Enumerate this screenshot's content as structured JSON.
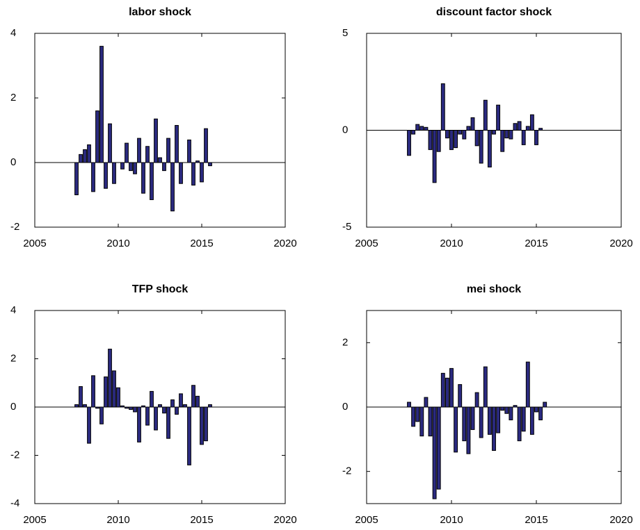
{
  "chart_data": [
    {
      "type": "bar",
      "title": "labor shock",
      "color": "#2b2a80",
      "x": [
        2007.5,
        2007.75,
        2008,
        2008.25,
        2008.5,
        2008.75,
        2009,
        2009.25,
        2009.5,
        2009.75,
        2010,
        2010.25,
        2010.5,
        2010.75,
        2011,
        2011.25,
        2011.5,
        2011.75,
        2012,
        2012.25,
        2012.5,
        2012.75,
        2013,
        2013.25,
        2013.5,
        2013.75,
        2014,
        2014.25,
        2014.5,
        2014.75,
        2015,
        2015.25,
        2015.5
      ],
      "values": [
        -1.0,
        0.25,
        0.4,
        0.55,
        -0.9,
        1.6,
        3.6,
        -0.8,
        1.2,
        -0.65,
        0,
        -0.2,
        0.6,
        -0.25,
        -0.35,
        0.75,
        -0.95,
        0.5,
        -1.15,
        1.35,
        0.15,
        -0.25,
        0.75,
        -1.5,
        1.15,
        -0.65,
        0,
        0.7,
        -0.7,
        0.05,
        -0.6,
        1.05,
        -0.1
      ],
      "xlim": [
        2005,
        2020
      ],
      "xticks": [
        2005,
        2010,
        2015,
        2020
      ],
      "ylim": [
        -2,
        4
      ],
      "yticks": [
        -2,
        0,
        2,
        4
      ]
    },
    {
      "type": "bar",
      "title": "discount factor shock",
      "color": "#2b2a80",
      "x": [
        2007.5,
        2007.75,
        2008,
        2008.25,
        2008.5,
        2008.75,
        2009,
        2009.25,
        2009.5,
        2009.75,
        2010,
        2010.25,
        2010.5,
        2010.75,
        2011,
        2011.25,
        2011.5,
        2011.75,
        2012,
        2012.25,
        2012.5,
        2012.75,
        2013,
        2013.25,
        2013.5,
        2013.75,
        2014,
        2014.25,
        2014.5,
        2014.75,
        2015,
        2015.25,
        2015.5
      ],
      "values": [
        -1.3,
        -0.2,
        0.3,
        0.2,
        0.15,
        -1.0,
        -2.7,
        -1.1,
        2.4,
        -0.4,
        -1.0,
        -0.9,
        -0.2,
        -0.45,
        0.2,
        0.65,
        -0.8,
        -1.7,
        1.55,
        -1.9,
        -0.2,
        1.3,
        -1.1,
        -0.4,
        -0.45,
        0.35,
        0.45,
        -0.75,
        0.2,
        0.8,
        -0.75,
        0.1,
        0
      ],
      "xlim": [
        2005,
        2020
      ],
      "xticks": [
        2005,
        2010,
        2015,
        2020
      ],
      "ylim": [
        -5,
        5
      ],
      "yticks": [
        -5,
        0,
        5
      ]
    },
    {
      "type": "bar",
      "title": "TFP shock",
      "color": "#2b2a80",
      "x": [
        2007.5,
        2007.75,
        2008,
        2008.25,
        2008.5,
        2008.75,
        2009,
        2009.25,
        2009.5,
        2009.75,
        2010,
        2010.25,
        2010.5,
        2010.75,
        2011,
        2011.25,
        2011.5,
        2011.75,
        2012,
        2012.25,
        2012.5,
        2012.75,
        2013,
        2013.25,
        2013.5,
        2013.75,
        2014,
        2014.25,
        2014.5,
        2014.75,
        2015,
        2015.25,
        2015.5
      ],
      "values": [
        0.1,
        0.85,
        0.1,
        -1.5,
        1.3,
        -0.05,
        -0.7,
        1.25,
        2.4,
        1.5,
        0.8,
        0.05,
        -0.05,
        -0.1,
        -0.2,
        -1.45,
        0.05,
        -0.75,
        0.65,
        -0.95,
        0.1,
        -0.25,
        -1.3,
        0.3,
        -0.3,
        0.55,
        0.1,
        -2.4,
        0.9,
        0.45,
        -1.55,
        -1.4,
        0.1
      ],
      "xlim": [
        2005,
        2020
      ],
      "xticks": [
        2005,
        2010,
        2015,
        2020
      ],
      "ylim": [
        -4,
        4
      ],
      "yticks": [
        -4,
        -2,
        0,
        2,
        4
      ]
    },
    {
      "type": "bar",
      "title": "mei shock",
      "color": "#2b2a80",
      "x": [
        2007.5,
        2007.75,
        2008,
        2008.25,
        2008.5,
        2008.75,
        2009,
        2009.25,
        2009.5,
        2009.75,
        2010,
        2010.25,
        2010.5,
        2010.75,
        2011,
        2011.25,
        2011.5,
        2011.75,
        2012,
        2012.25,
        2012.5,
        2012.75,
        2013,
        2013.25,
        2013.5,
        2013.75,
        2014,
        2014.25,
        2014.5,
        2014.75,
        2015,
        2015.25,
        2015.5
      ],
      "values": [
        0.15,
        -0.6,
        -0.45,
        -0.9,
        0.3,
        -0.9,
        -2.85,
        -2.55,
        1.05,
        0.9,
        1.2,
        -1.4,
        0.7,
        -1.05,
        -1.45,
        -0.7,
        0.45,
        -0.95,
        1.25,
        -0.85,
        -1.35,
        -0.8,
        -0.1,
        -0.2,
        -0.4,
        0.05,
        -1.05,
        -0.75,
        1.4,
        -0.85,
        -0.15,
        -0.4,
        0.15
      ],
      "xlim": [
        2005,
        2020
      ],
      "xticks": [
        2005,
        2010,
        2015,
        2020
      ],
      "ylim": [
        -3,
        3
      ],
      "yticks": [
        -2,
        0,
        2
      ]
    }
  ]
}
